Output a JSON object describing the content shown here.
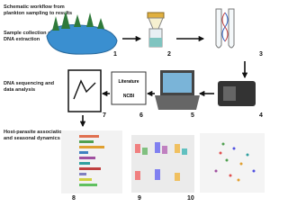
{
  "title_lines": [
    "Schematic workflow from",
    "plankton sampling to results"
  ],
  "sections": [
    {
      "lines": [
        "Sample collection and",
        "DNA extraction"
      ]
    },
    {
      "lines": [
        "DNA sequencing and",
        "data analysis"
      ]
    },
    {
      "lines": [
        "Host-parasite association",
        "and seasonal dynamics"
      ]
    }
  ],
  "steps": [
    "1",
    "2",
    "3",
    "4",
    "5",
    "6",
    "7",
    "8",
    "9",
    "10"
  ],
  "database": {
    "literature": "Literature",
    "ncbi": "NCBI"
  }
}
